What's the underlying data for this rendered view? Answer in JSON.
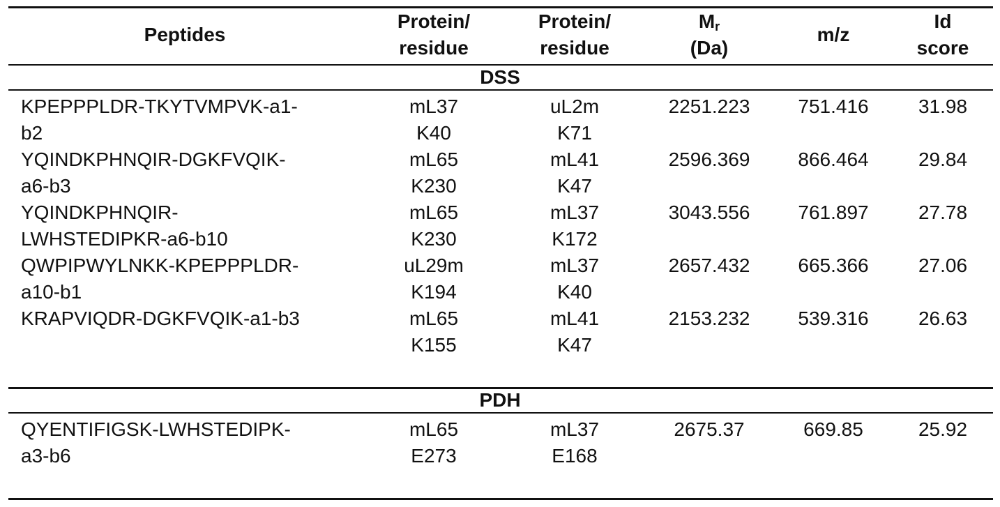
{
  "table": {
    "header": [
      [
        "Peptides"
      ],
      [
        "Protein/",
        "residue"
      ],
      [
        "Protein/",
        "residue"
      ],
      [
        {
          "base": "M",
          "sub": "r"
        },
        "(Da)"
      ],
      [
        "m/z"
      ],
      [
        "Id",
        "score"
      ]
    ],
    "sections": [
      {
        "title": "DSS",
        "rows": [
          {
            "peptide": [
              "KPEPPPLDR-TKYTVMPVK-a1-",
              "b2"
            ],
            "protein1": [
              "mL37",
              "K40"
            ],
            "protein2": [
              "uL2m",
              "K71"
            ],
            "mr": 2251.223,
            "mz": 751.416,
            "score": 31.98
          },
          {
            "peptide": [
              "YQINDKPHNQIR-DGKFVQIK-",
              "a6-b3"
            ],
            "protein1": [
              "mL65",
              "K230"
            ],
            "protein2": [
              "mL41",
              "K47"
            ],
            "mr": 2596.369,
            "mz": 866.464,
            "score": 29.84
          },
          {
            "peptide": [
              "YQINDKPHNQIR-",
              "LWHSTEDIPKR-a6-b10"
            ],
            "protein1": [
              "mL65",
              "K230"
            ],
            "protein2": [
              "mL37",
              "K172"
            ],
            "mr": 3043.556,
            "mz": 761.897,
            "score": 27.78
          },
          {
            "peptide": [
              "QWPIPWYLNKK-KPEPPPLDR-",
              "a10-b1"
            ],
            "protein1": [
              "uL29m",
              "K194"
            ],
            "protein2": [
              "mL37",
              "K40"
            ],
            "mr": 2657.432,
            "mz": 665.366,
            "score": 27.06
          },
          {
            "peptide": [
              "KRAPVIQDR-DGKFVQIK-a1-b3"
            ],
            "protein1": [
              "mL65",
              "K155"
            ],
            "protein2": [
              "mL41",
              "K47"
            ],
            "mr": 2153.232,
            "mz": 539.316,
            "score": 26.63
          }
        ]
      },
      {
        "title": "PDH",
        "rows": [
          {
            "peptide": [
              "QYENTIFIGSK-LWHSTEDIPK-",
              "a3-b6"
            ],
            "protein1": [
              "mL65",
              "E273"
            ],
            "protein2": [
              "mL37",
              "E168"
            ],
            "mr": 2675.37,
            "mz": 669.85,
            "score": 25.92
          }
        ]
      }
    ]
  }
}
